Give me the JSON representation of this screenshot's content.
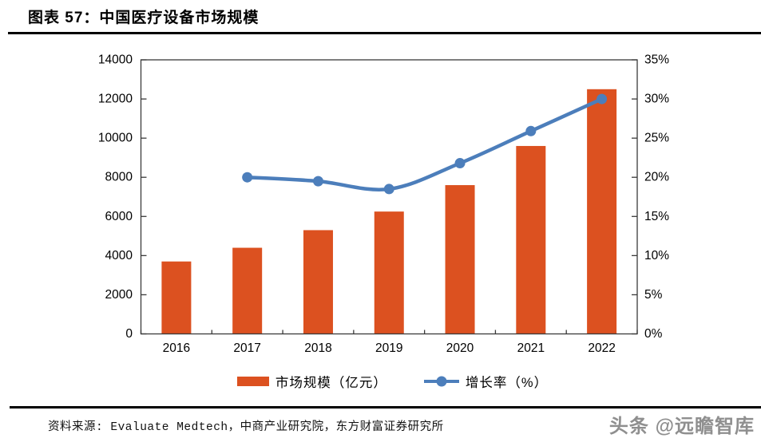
{
  "page": {
    "title": "图表 57：中国医疗设备市场规模",
    "source": "资料来源: Evaluate Medtech，中商产业研究院，东方财富证券研究所",
    "watermark": "头条 @远瞻智库"
  },
  "colors": {
    "bar": "#DC5120",
    "line": "#4C7EBB",
    "axis": "#3a3a3a",
    "text": "#000000"
  },
  "chart_data": {
    "type": "bar",
    "subtype": "bar+line combo, dual axis",
    "title": "中国医疗设备市场规模",
    "categories": [
      "2016",
      "2017",
      "2018",
      "2019",
      "2020",
      "2021",
      "2022"
    ],
    "series": [
      {
        "name": "市场规模（亿元）",
        "type": "bar",
        "axis": "left",
        "color": "#DC5120",
        "values": [
          3700,
          4400,
          5300,
          6250,
          7600,
          9600,
          12500
        ]
      },
      {
        "name": "增长率（%）",
        "type": "line",
        "axis": "right",
        "color": "#4C7EBB",
        "values": [
          null,
          20,
          19.5,
          18.5,
          21.8,
          25.9,
          30
        ]
      }
    ],
    "left_axis": {
      "min": 0,
      "max": 14000,
      "step": 2000,
      "ticks": [
        "0",
        "2000",
        "4000",
        "6000",
        "8000",
        "10000",
        "12000",
        "14000"
      ]
    },
    "right_axis": {
      "min": 0,
      "max": 35,
      "step": 5,
      "ticks": [
        "0%",
        "5%",
        "10%",
        "15%",
        "20%",
        "25%",
        "30%",
        "35%"
      ]
    },
    "grid": false,
    "legend_position": "bottom"
  }
}
